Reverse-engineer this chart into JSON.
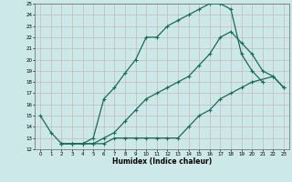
{
  "xlabel": "Humidex (Indice chaleur)",
  "bg_color": "#cce8e8",
  "grid_color": "#b0d0d0",
  "line_color": "#1a6b5a",
  "xlim": [
    -0.5,
    23.5
  ],
  "ylim": [
    12,
    25
  ],
  "xticks": [
    0,
    1,
    2,
    3,
    4,
    5,
    6,
    7,
    8,
    9,
    10,
    11,
    12,
    13,
    14,
    15,
    16,
    17,
    18,
    19,
    20,
    21,
    22,
    23
  ],
  "yticks": [
    12,
    13,
    14,
    15,
    16,
    17,
    18,
    19,
    20,
    21,
    22,
    23,
    24,
    25
  ],
  "line1_x": [
    0,
    1,
    2,
    3,
    4,
    5,
    6,
    7,
    8,
    9,
    10,
    11,
    12,
    13,
    14,
    15,
    16,
    17,
    18,
    19,
    20,
    21
  ],
  "line1_y": [
    15,
    13.5,
    12.5,
    12.5,
    12.5,
    13.0,
    16.5,
    17.5,
    18.8,
    20.0,
    22.0,
    22.0,
    23.0,
    23.5,
    24.0,
    24.5,
    25.0,
    25.0,
    24.5,
    20.5,
    19.0,
    18.0
  ],
  "line2_x": [
    2,
    3,
    4,
    5,
    6,
    7,
    8,
    9,
    10,
    11,
    12,
    13,
    14,
    15,
    16,
    17,
    18,
    19,
    20,
    21,
    22,
    23
  ],
  "line2_y": [
    12.5,
    12.5,
    12.5,
    12.5,
    13.0,
    13.5,
    14.5,
    15.5,
    16.5,
    17.0,
    17.5,
    18.0,
    18.5,
    19.5,
    20.5,
    22.0,
    22.5,
    21.5,
    20.5,
    19.0,
    18.5,
    17.5
  ],
  "line3_x": [
    2,
    3,
    4,
    5,
    6,
    7,
    8,
    9,
    10,
    11,
    12,
    13,
    14,
    15,
    16,
    17,
    18,
    19,
    20,
    22,
    23
  ],
  "line3_y": [
    12.5,
    12.5,
    12.5,
    12.5,
    12.5,
    13.0,
    13.0,
    13.0,
    13.0,
    13.0,
    13.0,
    13.0,
    14.0,
    15.0,
    15.5,
    16.5,
    17.0,
    17.5,
    18.0,
    18.5,
    17.5
  ]
}
